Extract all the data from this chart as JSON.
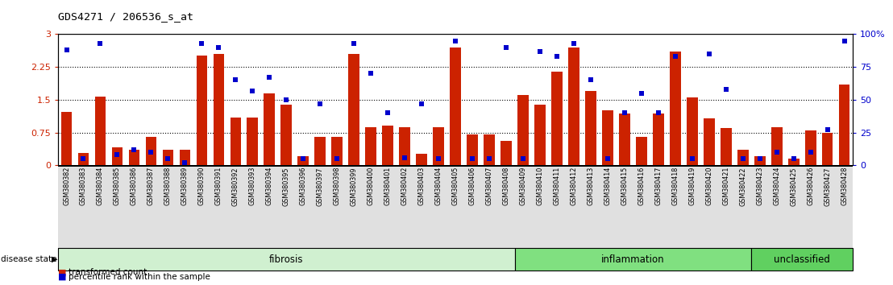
{
  "title": "GDS4271 / 206536_s_at",
  "samples": [
    "GSM380382",
    "GSM380383",
    "GSM380384",
    "GSM380385",
    "GSM380386",
    "GSM380387",
    "GSM380388",
    "GSM380389",
    "GSM380390",
    "GSM380391",
    "GSM380392",
    "GSM380393",
    "GSM380394",
    "GSM380395",
    "GSM380396",
    "GSM380397",
    "GSM380398",
    "GSM380399",
    "GSM380400",
    "GSM380401",
    "GSM380402",
    "GSM380403",
    "GSM380404",
    "GSM380405",
    "GSM380406",
    "GSM380407",
    "GSM380408",
    "GSM380409",
    "GSM380410",
    "GSM380411",
    "GSM380412",
    "GSM380413",
    "GSM380414",
    "GSM380415",
    "GSM380416",
    "GSM380417",
    "GSM380418",
    "GSM380419",
    "GSM380420",
    "GSM380421",
    "GSM380422",
    "GSM380423",
    "GSM380424",
    "GSM380425",
    "GSM380426",
    "GSM380427",
    "GSM380428"
  ],
  "red_bars": [
    1.22,
    0.28,
    1.57,
    0.42,
    0.35,
    0.65,
    0.35,
    0.35,
    2.52,
    2.55,
    1.1,
    1.1,
    1.65,
    1.38,
    0.2,
    0.65,
    0.65,
    2.55,
    0.88,
    0.9,
    0.88,
    0.27,
    0.88,
    2.7,
    0.7,
    0.7,
    0.55,
    1.6,
    1.38,
    2.15,
    2.7,
    1.7,
    1.25,
    1.18,
    0.65,
    1.18,
    2.6,
    1.55,
    1.08,
    0.85,
    0.35,
    0.2,
    0.88,
    0.15,
    0.8,
    0.75,
    1.85
  ],
  "blue_squares": [
    88,
    5,
    93,
    8,
    12,
    10,
    5,
    2,
    93,
    90,
    65,
    57,
    67,
    50,
    5,
    47,
    5,
    93,
    70,
    40,
    6,
    47,
    5,
    95,
    5,
    5,
    90,
    5,
    87,
    83,
    93,
    65,
    5,
    40,
    55,
    40,
    83,
    5,
    85,
    58,
    5,
    5,
    10,
    5,
    10,
    27,
    95
  ],
  "disease_groups": [
    {
      "label": "fibrosis",
      "start": 0,
      "end": 27,
      "color": "#d0f0d0"
    },
    {
      "label": "inflammation",
      "start": 27,
      "end": 41,
      "color": "#80e080"
    },
    {
      "label": "unclassified",
      "start": 41,
      "end": 47,
      "color": "#60d060"
    }
  ],
  "ylim_left": [
    0,
    3.0
  ],
  "ylim_right": [
    0,
    100
  ],
  "yticks_left": [
    0,
    0.75,
    1.5,
    2.25,
    3.0
  ],
  "yticks_right": [
    0,
    25,
    50,
    75,
    100
  ],
  "ytick_labels_left": [
    "0",
    "0.75",
    "1.5",
    "2.25",
    "3"
  ],
  "ytick_labels_right": [
    "0",
    "25",
    "50",
    "75",
    "100%"
  ],
  "hlines": [
    0.75,
    1.5,
    2.25
  ],
  "bar_color": "#cc2200",
  "square_color": "#0000cc",
  "bg_color": "#ffffff",
  "disease_label": "disease state",
  "legend_red": "transformed count",
  "legend_blue": "percentile rank within the sample",
  "xtick_bg": "#e0e0e0"
}
